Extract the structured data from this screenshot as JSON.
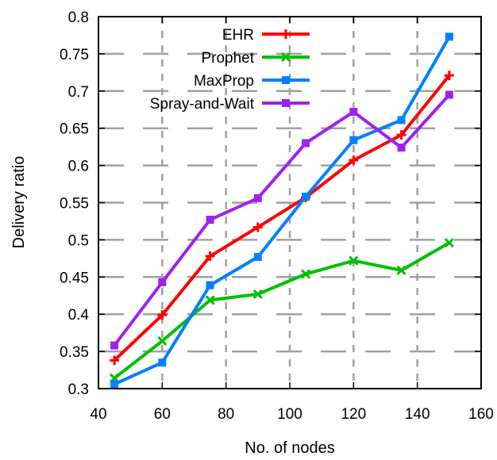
{
  "chart_data": {
    "type": "line",
    "title": "",
    "xlabel": "No. of nodes",
    "ylabel": "Delivery ratio",
    "xlim": [
      40,
      160
    ],
    "ylim": [
      0.3,
      0.8
    ],
    "xticks": [
      "40",
      "60",
      "80",
      "100",
      "120",
      "140",
      "160"
    ],
    "yticks": [
      "0.3",
      "0.35",
      "0.4",
      "0.45",
      "0.5",
      "0.55",
      "0.6",
      "0.65",
      "0.7",
      "0.75",
      "0.8"
    ],
    "grid": true,
    "legend_position": "top-left",
    "x": [
      45,
      60,
      75,
      90,
      105,
      120,
      135,
      150
    ],
    "series": [
      {
        "name": "EHR",
        "color": "#ff0000",
        "marker": "plus",
        "values": [
          0.338,
          0.399,
          0.478,
          0.517,
          0.557,
          0.607,
          0.641,
          0.721
        ]
      },
      {
        "name": "Prophet",
        "color": "#00c000",
        "marker": "cross",
        "values": [
          0.314,
          0.364,
          0.419,
          0.427,
          0.454,
          0.472,
          0.459,
          0.496
        ]
      },
      {
        "name": "MaxProp",
        "color": "#0080ff",
        "marker": "square",
        "values": [
          0.306,
          0.335,
          0.439,
          0.477,
          0.558,
          0.634,
          0.661,
          0.773
        ]
      },
      {
        "name": "Spray-and-Wait",
        "color": "#a020f0",
        "marker": "square",
        "values": [
          0.358,
          0.443,
          0.527,
          0.556,
          0.63,
          0.672,
          0.624,
          0.695
        ]
      }
    ]
  }
}
